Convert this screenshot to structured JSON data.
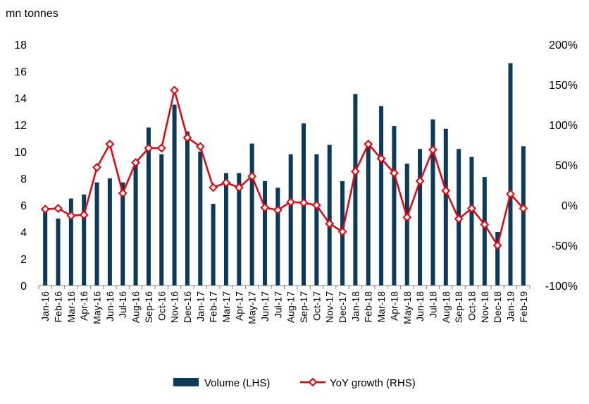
{
  "chart_data": {
    "type": "bar",
    "left_unit_label": "mn tonnes",
    "categories": [
      "Jan-16",
      "Feb-16",
      "Mar-16",
      "Apr-16",
      "May-16",
      "Jun-16",
      "Jul-16",
      "Aug-16",
      "Sep-16",
      "Oct-16",
      "Nov-16",
      "Dec-16",
      "Jan-17",
      "Feb-17",
      "Mar-17",
      "Apr-17",
      "May-17",
      "Jun-17",
      "Jul-17",
      "Aug-17",
      "Sep-17",
      "Oct-17",
      "Nov-17",
      "Dec-17",
      "Jan-18",
      "Feb-18",
      "Mar-18",
      "Apr-18",
      "May-18",
      "Jun-18",
      "Jul-18",
      "Aug-18",
      "Sep-18",
      "Oct-18",
      "Nov-18",
      "Dec-18",
      "Jan-19",
      "Feb-19"
    ],
    "series": [
      {
        "name": "Volume (LHS)",
        "type": "bar",
        "axis": "left",
        "color": "#0B3A5A",
        "values": [
          5.6,
          5.0,
          6.5,
          6.8,
          7.7,
          8.0,
          7.7,
          9.0,
          11.8,
          9.8,
          13.5,
          11.5,
          10.0,
          6.1,
          8.4,
          8.4,
          10.6,
          7.8,
          7.3,
          9.8,
          12.1,
          9.8,
          10.5,
          7.8,
          14.3,
          10.4,
          13.4,
          11.9,
          9.1,
          10.2,
          12.4,
          11.7,
          10.2,
          9.6,
          8.1,
          4.0,
          16.6,
          10.4
        ]
      },
      {
        "name": "YoY growth (RHS)",
        "type": "line",
        "axis": "right",
        "color": "#E8000B",
        "marker": "diamond",
        "values": [
          -5,
          -4,
          -13,
          -12,
          47,
          76,
          15,
          53,
          71,
          71,
          143,
          84,
          73,
          22,
          28,
          22,
          36,
          -3,
          -6,
          4,
          3,
          0,
          -23,
          -33,
          42,
          76,
          58,
          40,
          -15,
          30,
          69,
          18,
          -17,
          -4,
          -24,
          -50,
          14,
          -4
        ]
      }
    ],
    "y_left": {
      "min": 0,
      "max": 18,
      "step": 2,
      "tick_labels": [
        "0",
        "2",
        "4",
        "6",
        "8",
        "10",
        "12",
        "14",
        "16",
        "18"
      ]
    },
    "y_right": {
      "min": -100,
      "max": 200,
      "step": 50,
      "tick_labels": [
        "-100%",
        "-50%",
        "0%",
        "50%",
        "100%",
        "150%",
        "200%"
      ]
    },
    "grid": false,
    "legend_position": "bottom-center"
  }
}
